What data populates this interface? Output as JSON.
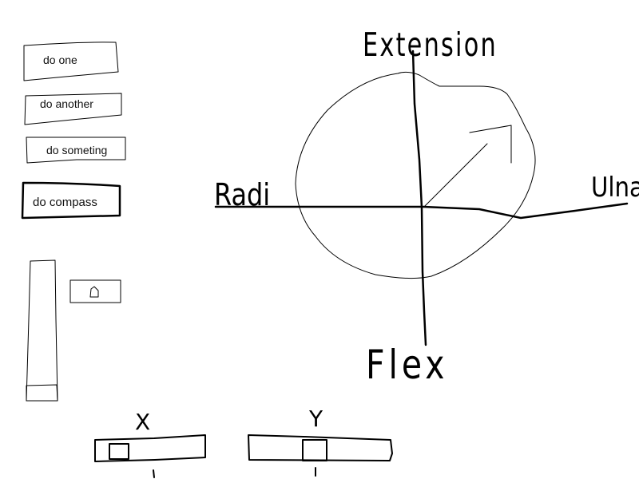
{
  "buttons": {
    "do_one": "do one",
    "do_another": "do another",
    "do_something": "do someting",
    "do_compass": "do compass"
  },
  "compass": {
    "top_label": "Extension",
    "left_label": "Radi",
    "right_label": "Ulna",
    "bottom_label": "Flex"
  },
  "value_box": {
    "value": "0"
  },
  "sliders": {
    "x_label": "X",
    "y_label": "Y"
  },
  "colors": {
    "ink": "#000000",
    "paper": "#ffffff"
  }
}
